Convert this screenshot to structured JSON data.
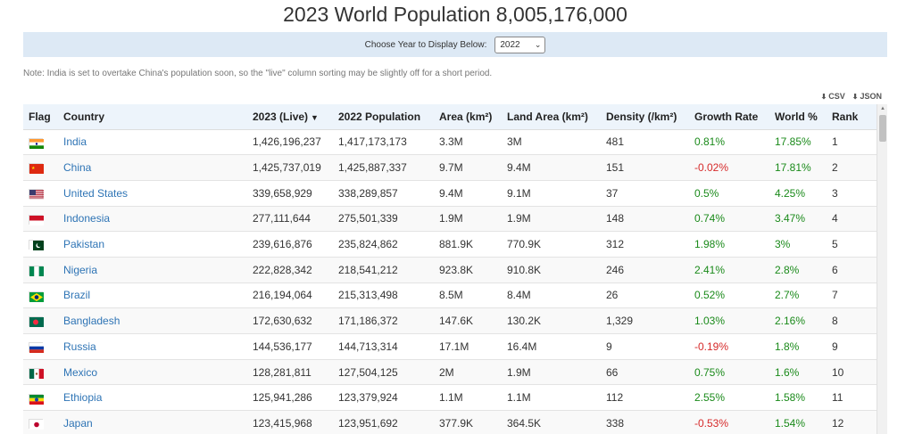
{
  "page": {
    "title": "2023 World Population 8,005,176,000",
    "year_label": "Choose Year to Display Below:",
    "year_selected": "2022",
    "note": "Note: India is set to overtake China's population soon, so the \"live\" column sorting may be slightly off for a short period.",
    "export_csv": "CSV",
    "export_json": "JSON"
  },
  "table": {
    "headers": [
      "Flag",
      "Country",
      "2023 (Live)",
      "2022 Population",
      "Area (km²)",
      "Land Area (km²)",
      "Density (/km²)",
      "Growth Rate",
      "World %",
      "Rank"
    ],
    "rows": [
      {
        "country": "India",
        "live": "1,426,196,237",
        "pop2022": "1,417,173,173",
        "area": "3.3M",
        "land": "3M",
        "density": "481",
        "growth": "0.81%",
        "world": "17.85%",
        "rank": "1"
      },
      {
        "country": "China",
        "live": "1,425,737,019",
        "pop2022": "1,425,887,337",
        "area": "9.7M",
        "land": "9.4M",
        "density": "151",
        "growth": "-0.02%",
        "world": "17.81%",
        "rank": "2"
      },
      {
        "country": "United States",
        "live": "339,658,929",
        "pop2022": "338,289,857",
        "area": "9.4M",
        "land": "9.1M",
        "density": "37",
        "growth": "0.5%",
        "world": "4.25%",
        "rank": "3"
      },
      {
        "country": "Indonesia",
        "live": "277,111,644",
        "pop2022": "275,501,339",
        "area": "1.9M",
        "land": "1.9M",
        "density": "148",
        "growth": "0.74%",
        "world": "3.47%",
        "rank": "4"
      },
      {
        "country": "Pakistan",
        "live": "239,616,876",
        "pop2022": "235,824,862",
        "area": "881.9K",
        "land": "770.9K",
        "density": "312",
        "growth": "1.98%",
        "world": "3%",
        "rank": "5"
      },
      {
        "country": "Nigeria",
        "live": "222,828,342",
        "pop2022": "218,541,212",
        "area": "923.8K",
        "land": "910.8K",
        "density": "246",
        "growth": "2.41%",
        "world": "2.8%",
        "rank": "6"
      },
      {
        "country": "Brazil",
        "live": "216,194,064",
        "pop2022": "215,313,498",
        "area": "8.5M",
        "land": "8.4M",
        "density": "26",
        "growth": "0.52%",
        "world": "2.7%",
        "rank": "7"
      },
      {
        "country": "Bangladesh",
        "live": "172,630,632",
        "pop2022": "171,186,372",
        "area": "147.6K",
        "land": "130.2K",
        "density": "1,329",
        "growth": "1.03%",
        "world": "2.16%",
        "rank": "8"
      },
      {
        "country": "Russia",
        "live": "144,536,177",
        "pop2022": "144,713,314",
        "area": "17.1M",
        "land": "16.4M",
        "density": "9",
        "growth": "-0.19%",
        "world": "1.8%",
        "rank": "9"
      },
      {
        "country": "Mexico",
        "live": "128,281,811",
        "pop2022": "127,504,125",
        "area": "2M",
        "land": "1.9M",
        "density": "66",
        "growth": "0.75%",
        "world": "1.6%",
        "rank": "10"
      },
      {
        "country": "Ethiopia",
        "live": "125,941,286",
        "pop2022": "123,379,924",
        "area": "1.1M",
        "land": "1.1M",
        "density": "112",
        "growth": "2.55%",
        "world": "1.58%",
        "rank": "11"
      },
      {
        "country": "Japan",
        "live": "123,415,968",
        "pop2022": "123,951,692",
        "area": "377.9K",
        "land": "364.5K",
        "density": "338",
        "growth": "-0.53%",
        "world": "1.54%",
        "rank": "12"
      }
    ]
  },
  "flags": {
    "India": {
      "icon": "india-flag-icon",
      "colors": [
        "#ff9933",
        "#ffffff",
        "#138808"
      ]
    },
    "China": {
      "icon": "china-flag-icon",
      "colors": [
        "#de2910",
        "#ffde00"
      ]
    },
    "United States": {
      "icon": "us-flag-icon",
      "colors": [
        "#b22234",
        "#ffffff",
        "#3c3b6e"
      ]
    },
    "Indonesia": {
      "icon": "indonesia-flag-icon",
      "colors": [
        "#ce1126",
        "#ffffff"
      ]
    },
    "Pakistan": {
      "icon": "pakistan-flag-icon",
      "colors": [
        "#01411c",
        "#ffffff"
      ]
    },
    "Nigeria": {
      "icon": "nigeria-flag-icon",
      "colors": [
        "#008751",
        "#ffffff"
      ]
    },
    "Brazil": {
      "icon": "brazil-flag-icon",
      "colors": [
        "#009c3b",
        "#ffdf00",
        "#002776"
      ]
    },
    "Bangladesh": {
      "icon": "bangladesh-flag-icon",
      "colors": [
        "#006a4e",
        "#f42a41"
      ]
    },
    "Russia": {
      "icon": "russia-flag-icon",
      "colors": [
        "#ffffff",
        "#0039a6",
        "#d52b1e"
      ]
    },
    "Mexico": {
      "icon": "mexico-flag-icon",
      "colors": [
        "#006847",
        "#ffffff",
        "#ce1126"
      ]
    },
    "Ethiopia": {
      "icon": "ethiopia-flag-icon",
      "colors": [
        "#078930",
        "#fcdd09",
        "#da121a"
      ]
    },
    "Japan": {
      "icon": "japan-flag-icon",
      "colors": [
        "#ffffff",
        "#bc002d"
      ]
    }
  },
  "colors": {
    "link": "#2e74b5",
    "positive": "#1a8a1a",
    "negative": "#d62a2a",
    "header_bg": "#edf4fb",
    "year_bar_bg": "#dde9f5"
  }
}
